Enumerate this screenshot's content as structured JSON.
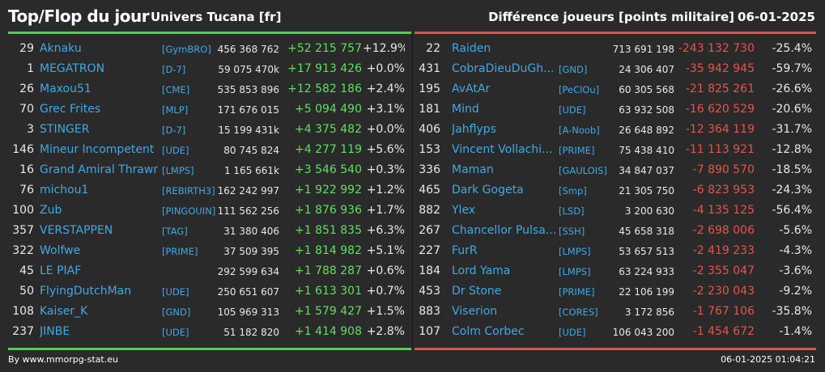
{
  "header": {
    "title": "Top/Flop du jour",
    "universe": "Univers Tucana [fr]",
    "metric": "Différence joueurs [points militaire]",
    "date": "06-01-2025"
  },
  "colors": {
    "top": "#4cd34c",
    "flop": "#d9534f",
    "link": "#3fa9e6"
  },
  "top": [
    {
      "rank": "29",
      "name": "Aknaku",
      "ally": "[GymBRO]",
      "points": "456 368 762",
      "diff": "+52 215 757",
      "pct": "+12.9%"
    },
    {
      "rank": "1",
      "name": "MEGATRON",
      "ally": "[D-7]",
      "points": "59 075 470k",
      "diff": "+17 913 426",
      "pct": "+0.0%"
    },
    {
      "rank": "26",
      "name": "Maxou51",
      "ally": "[CME]",
      "points": "535 853 896",
      "diff": "+12 582 186",
      "pct": "+2.4%"
    },
    {
      "rank": "70",
      "name": "Grec Frites",
      "ally": "[MLP]",
      "points": "171 676 015",
      "diff": "+5 094 490",
      "pct": "+3.1%"
    },
    {
      "rank": "3",
      "name": "STINGER",
      "ally": "[D-7]",
      "points": "15 199 431k",
      "diff": "+4 375 482",
      "pct": "+0.0%"
    },
    {
      "rank": "146",
      "name": "Mineur Incompetent",
      "ally": "[UDE]",
      "points": "80 745 824",
      "diff": "+4 277 119",
      "pct": "+5.6%"
    },
    {
      "rank": "16",
      "name": "Grand Amiral Thrawn",
      "ally": "[LMPS]",
      "points": "1 165 661k",
      "diff": "+3 546 540",
      "pct": "+0.3%"
    },
    {
      "rank": "76",
      "name": "michou1",
      "ally": "[REBIRTH3]",
      "points": "162 242 997",
      "diff": "+1 922 992",
      "pct": "+1.2%"
    },
    {
      "rank": "100",
      "name": "Zub",
      "ally": "[PINGOUIN]",
      "points": "111 562 256",
      "diff": "+1 876 936",
      "pct": "+1.7%"
    },
    {
      "rank": "357",
      "name": "VERSTAPPEN",
      "ally": "[TAG]",
      "points": "31 380 406",
      "diff": "+1 851 835",
      "pct": "+6.3%"
    },
    {
      "rank": "322",
      "name": "Wolfwe",
      "ally": "[PRIME]",
      "points": "37 509 395",
      "diff": "+1 814 982",
      "pct": "+5.1%"
    },
    {
      "rank": "45",
      "name": "LE PIAF",
      "ally": "",
      "points": "292 599 634",
      "diff": "+1 788 287",
      "pct": "+0.6%"
    },
    {
      "rank": "50",
      "name": "FlyingDutchMan",
      "ally": "[UDE]",
      "points": "250 651 607",
      "diff": "+1 613 301",
      "pct": "+0.7%"
    },
    {
      "rank": "108",
      "name": "Kaiser_K",
      "ally": "[GND]",
      "points": "105 969 313",
      "diff": "+1 579 427",
      "pct": "+1.5%"
    },
    {
      "rank": "237",
      "name": "JINBE",
      "ally": "[UDE]",
      "points": "51 182 820",
      "diff": "+1 414 908",
      "pct": "+2.8%"
    }
  ],
  "flop": [
    {
      "rank": "22",
      "name": "Raiden",
      "ally": "",
      "points": "713 691 198",
      "diff": "-243 132 730",
      "pct": "-25.4%"
    },
    {
      "rank": "431",
      "name": "CobraDieuDuGh...",
      "ally": "[GND]",
      "points": "24 306 407",
      "diff": "-35 942 945",
      "pct": "-59.7%"
    },
    {
      "rank": "195",
      "name": "AvAtAr",
      "ally": "[PeClOu]",
      "points": "60 305 568",
      "diff": "-21 825 261",
      "pct": "-26.6%"
    },
    {
      "rank": "181",
      "name": "Mind",
      "ally": "[UDE]",
      "points": "63 932 508",
      "diff": "-16 620 529",
      "pct": "-20.6%"
    },
    {
      "rank": "406",
      "name": "Jahflyps",
      "ally": "[A-Noob]",
      "points": "26 648 892",
      "diff": "-12 364 119",
      "pct": "-31.7%"
    },
    {
      "rank": "153",
      "name": "Vincent Vollachi...",
      "ally": "[PRIME]",
      "points": "75 438 410",
      "diff": "-11 113 921",
      "pct": "-12.8%"
    },
    {
      "rank": "336",
      "name": "Maman",
      "ally": "[GAULOIS]",
      "points": "34 847 037",
      "diff": "-7 890 570",
      "pct": "-18.5%"
    },
    {
      "rank": "465",
      "name": "Dark Gogeta",
      "ally": "[Smp]",
      "points": "21 305 750",
      "diff": "-6 823 953",
      "pct": "-24.3%"
    },
    {
      "rank": "882",
      "name": "Ylex",
      "ally": "[LSD]",
      "points": "3 200 630",
      "diff": "-4 135 125",
      "pct": "-56.4%"
    },
    {
      "rank": "267",
      "name": "Chancellor Pulsa...",
      "ally": "[SSH]",
      "points": "45 658 318",
      "diff": "-2 698 006",
      "pct": "-5.6%"
    },
    {
      "rank": "227",
      "name": "FurR",
      "ally": "[LMPS]",
      "points": "53 657 513",
      "diff": "-2 419 233",
      "pct": "-4.3%"
    },
    {
      "rank": "184",
      "name": "Lord Yama",
      "ally": "[LMPS]",
      "points": "63 224 933",
      "diff": "-2 355 047",
      "pct": "-3.6%"
    },
    {
      "rank": "453",
      "name": "Dr Stone",
      "ally": "[PRIME]",
      "points": "22 106 199",
      "diff": "-2 230 043",
      "pct": "-9.2%"
    },
    {
      "rank": "883",
      "name": "Viserion",
      "ally": "[CORES]",
      "points": "3 172 856",
      "diff": "-1 767 106",
      "pct": "-35.8%"
    },
    {
      "rank": "107",
      "name": "Colm Corbec",
      "ally": "[UDE]",
      "points": "106 043 200",
      "diff": "-1 454 672",
      "pct": "-1.4%"
    }
  ],
  "footer": {
    "source": "By www.mmorpg-stat.eu",
    "timestamp": "06-01-2025 01:04:21"
  }
}
